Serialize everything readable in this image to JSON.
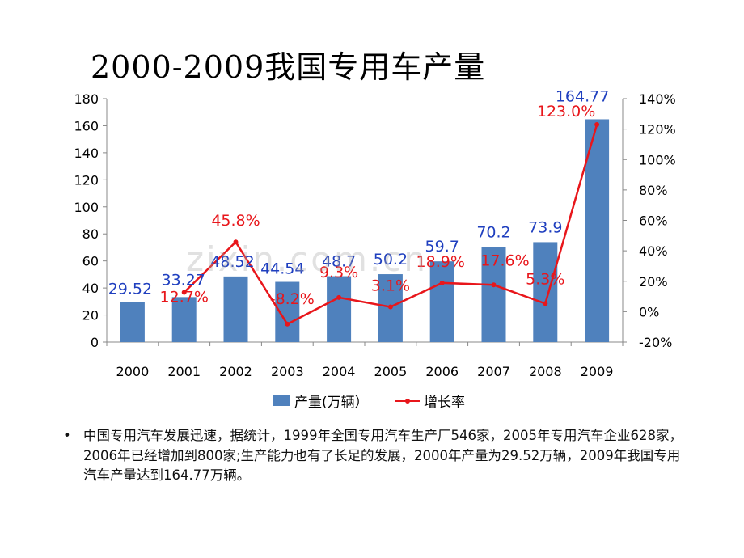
{
  "slide": {
    "title": "2000-2009我国专用车产量",
    "watermark": "zixin.com.cn",
    "bullet_symbol": "•",
    "bullet_text": "中国专用汽车发展迅速，据统计，1999年全国专用汽车生产厂546家，2005年专用汽车企业628家，2006年已经增加到800家;生产能力也有了长足的发展，2000年产量为29.52万辆，2009年我国专用汽车产量达到164.77万辆。"
  },
  "chart_data": {
    "type": "bar+line",
    "categories": [
      "2000",
      "2001",
      "2002",
      "2003",
      "2004",
      "2005",
      "2006",
      "2007",
      "2008",
      "2009"
    ],
    "series": [
      {
        "name": "产量(万辆）",
        "type": "bar",
        "axis": "left",
        "color": "#4f81bd",
        "values": [
          29.52,
          33.27,
          48.52,
          44.54,
          48.7,
          50.2,
          59.7,
          70.2,
          73.9,
          164.77
        ],
        "labels": [
          "29.52",
          "33.27",
          "48.52",
          "44.54",
          "48.7",
          "50.2",
          "59.7",
          "70.2",
          "73.9",
          "164.77"
        ]
      },
      {
        "name": "增长率",
        "type": "line",
        "axis": "right",
        "color": "#e8161b",
        "values": [
          null,
          12.7,
          45.8,
          -8.2,
          9.3,
          3.1,
          18.9,
          17.6,
          5.3,
          123.0
        ],
        "labels": [
          "",
          "12.7%",
          "45.8%",
          "-8.2%",
          "9.3%",
          "3.1%",
          "18.9%",
          "17.6%",
          "5.3%",
          "123.0%"
        ]
      }
    ],
    "y_left": {
      "min": 0,
      "max": 180,
      "ticks": [
        "0",
        "20",
        "40",
        "60",
        "80",
        "100",
        "120",
        "140",
        "160",
        "180"
      ]
    },
    "y_right": {
      "min": -20,
      "max": 140,
      "ticks": [
        "-20%",
        "0%",
        "20%",
        "40%",
        "60%",
        "80%",
        "100%",
        "120%",
        "140%"
      ]
    },
    "grid": false,
    "legend_position": "bottom"
  }
}
